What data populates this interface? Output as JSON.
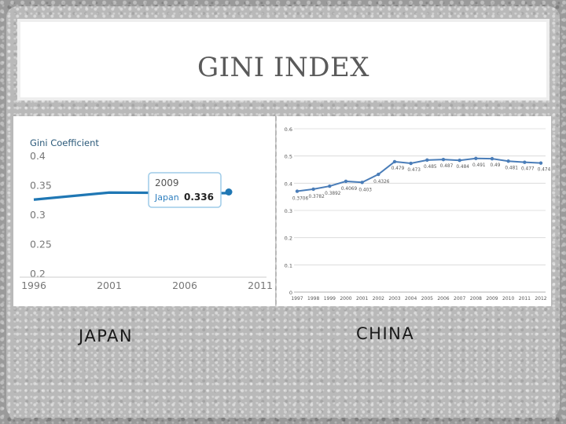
{
  "slide_title": "GINI INDEX",
  "captions": {
    "japan": "JAPAN",
    "china": "CHINA"
  },
  "chart_data": [
    {
      "type": "line",
      "title": "Gini Coefficient",
      "x": [
        1996,
        2001,
        2009
      ],
      "series": [
        {
          "values": [
            0.325,
            0.337,
            0.336
          ]
        }
      ],
      "xticks": [
        "1996",
        "2001",
        "2006",
        "2011"
      ],
      "yticks": [
        "0.4",
        "0.35",
        "0.3",
        "0.25",
        "0.2"
      ],
      "xlim": [
        1996,
        2011
      ],
      "ylim": [
        0.2,
        0.4
      ],
      "tooltip": {
        "year": "2009",
        "series": "Japan",
        "value": "0.336"
      },
      "line_color": "#1f77b4",
      "tooltip_border": "#9ecbe8",
      "grid": false
    },
    {
      "type": "line",
      "x": [
        1997,
        1998,
        1999,
        2000,
        2001,
        2002,
        2003,
        2004,
        2005,
        2006,
        2007,
        2008,
        2009,
        2010,
        2011,
        2012
      ],
      "xticks": [
        "1997",
        "1998",
        "1999",
        "2000",
        "2001",
        "2002",
        "2003",
        "2004",
        "2005",
        "2006",
        "2007",
        "2008",
        "2009",
        "2010",
        "2011",
        "2012"
      ],
      "series": [
        {
          "values": [
            0.3706,
            0.3782,
            0.3892,
            0.4069,
            0.403,
            0.4326,
            0.479,
            0.473,
            0.485,
            0.487,
            0.484,
            0.491,
            0.49,
            0.481,
            0.477,
            0.474
          ]
        }
      ],
      "data_labels": [
        "0.3706",
        "0.3782",
        "0.3892",
        "0.4069",
        "0.403",
        "0.4326",
        "0.479",
        "0.473",
        "0.485",
        "0.487",
        "0.484",
        "0.491",
        "0.49",
        "0.481",
        "0.477",
        "0.474"
      ],
      "yticks": [
        "0.6",
        "0.5",
        "0.4",
        "0.3",
        "0.2",
        "0.1",
        "0"
      ],
      "ylim": [
        0,
        0.6
      ],
      "line_color": "#4a7db8",
      "grid": true
    }
  ]
}
